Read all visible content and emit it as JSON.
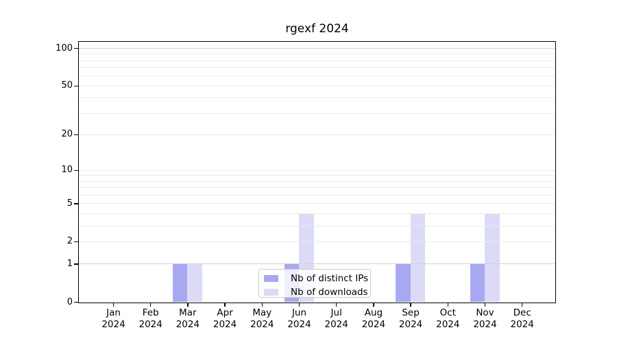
{
  "title": "rgexf 2024",
  "chart_data": {
    "type": "bar",
    "title": "rgexf 2024",
    "categories": [
      "Jan 2024",
      "Feb 2024",
      "Mar 2024",
      "Apr 2024",
      "May 2024",
      "Jun 2024",
      "Jul 2024",
      "Aug 2024",
      "Sep 2024",
      "Oct 2024",
      "Nov 2024",
      "Dec 2024"
    ],
    "series": [
      {
        "name": "Nb of distinct IPs",
        "color": "#a8a8f2",
        "values": [
          0,
          0,
          1,
          0,
          0,
          1,
          0,
          0,
          1,
          0,
          1,
          0
        ]
      },
      {
        "name": "Nb of downloads",
        "color": "#dbdbf8",
        "values": [
          0,
          0,
          1,
          0,
          0,
          4,
          0,
          0,
          4,
          0,
          4,
          0
        ]
      }
    ],
    "xlabel": "",
    "ylabel": "",
    "yscale": "log1p",
    "ylim": [
      0,
      112
    ],
    "yticks": [
      0,
      1,
      2,
      5,
      10,
      20,
      50,
      100
    ],
    "grid": {
      "show": true,
      "orientation": "horizontal",
      "values": [
        1,
        2,
        3,
        4,
        5,
        6,
        7,
        8,
        9,
        10,
        20,
        30,
        40,
        50,
        60,
        70,
        80,
        90,
        100
      ]
    },
    "legend": {
      "position": "inside-bottom-center",
      "entries": [
        "Nb of distinct IPs",
        "Nb of downloads"
      ]
    },
    "colors": {
      "bar_distinct_ips": "#a8a8f2",
      "bar_downloads": "#dbdbf8",
      "grid_minor": "#eaeaea",
      "grid_emphasis": "#d2d2d2",
      "axis": "#000000",
      "legend_border": "#cccccc",
      "background": "#ffffff"
    }
  }
}
